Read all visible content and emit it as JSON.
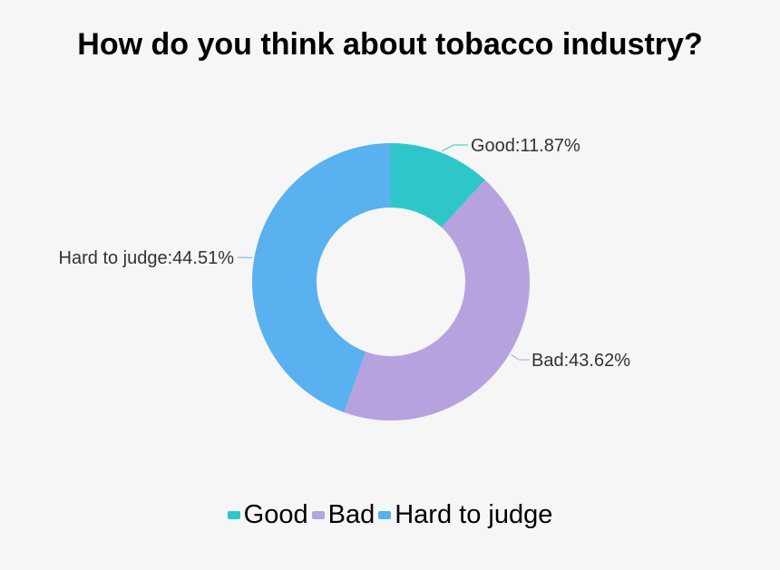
{
  "chart_data": {
    "type": "pie",
    "title": "How do you think about tobacco industry?",
    "donut": true,
    "legend_position": "bottom",
    "series": [
      {
        "name": "Good",
        "value": 11.87,
        "label": "Good:11.87%",
        "color": "#2ec7c9"
      },
      {
        "name": "Bad",
        "value": 43.62,
        "label": "Bad:43.62%",
        "color": "#b6a2de"
      },
      {
        "name": "Hard to judge",
        "value": 44.51,
        "label": "Hard to judge:44.51%",
        "color": "#5ab1ef"
      }
    ]
  }
}
